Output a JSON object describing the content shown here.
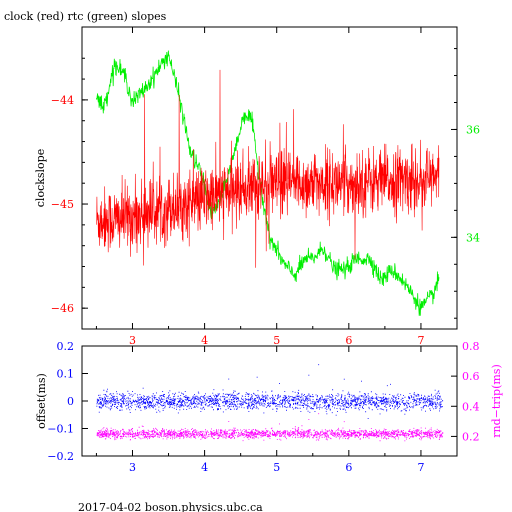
{
  "title": "clock (red) rtc (green) slopes",
  "footer": "2017-04-02  boson.physics.ubc.ca",
  "colors": {
    "clock": "#ff0000",
    "rtc": "#00ee00",
    "offset": "#0000ff",
    "rnd_trip": "#ff00ff",
    "axes": "#000000"
  },
  "chart_data": [
    {
      "type": "line",
      "title": "clock (red) rtc (green) slopes",
      "ylabel": "clockslope",
      "xlim": [
        2.3,
        7.5
      ],
      "ylim": [
        -46.2,
        -43.3
      ],
      "y2lim": [
        32.3,
        37.9
      ],
      "x_ticks": [
        3,
        4,
        5,
        6,
        7
      ],
      "y_ticks": [
        -44,
        -45,
        -46
      ],
      "y2_ticks": [
        34,
        36
      ],
      "series": [
        {
          "name": "clock",
          "axis": "left",
          "color": "#ff0000",
          "x": [
            2.5,
            2.75,
            3.0,
            3.25,
            3.5,
            3.75,
            4.0,
            4.25,
            4.5,
            4.75,
            5.0,
            5.25,
            5.5,
            5.75,
            6.0,
            6.25,
            6.5,
            6.75,
            7.0,
            7.25
          ],
          "y": [
            -45.15,
            -45.15,
            -45.12,
            -45.07,
            -45.03,
            -45.0,
            -44.95,
            -44.9,
            -44.85,
            -44.82,
            -44.82,
            -44.8,
            -44.8,
            -44.8,
            -44.8,
            -44.78,
            -44.78,
            -44.77,
            -44.76,
            -44.75
          ],
          "noise": 0.35
        },
        {
          "name": "rtc",
          "axis": "right",
          "color": "#00ee00",
          "x": [
            2.5,
            2.6,
            2.75,
            2.9,
            3.0,
            3.2,
            3.35,
            3.5,
            3.65,
            3.8,
            3.95,
            4.1,
            4.25,
            4.4,
            4.55,
            4.65,
            4.75,
            4.9,
            5.1,
            5.25,
            5.4,
            5.5,
            5.65,
            5.8,
            5.95,
            6.1,
            6.3,
            6.45,
            6.6,
            6.75,
            6.9,
            7.0,
            7.15,
            7.25
          ],
          "y": [
            36.6,
            36.4,
            37.2,
            37.0,
            36.5,
            36.8,
            37.1,
            37.4,
            36.6,
            35.6,
            35.2,
            34.4,
            34.8,
            35.5,
            36.3,
            36.2,
            35.2,
            34.0,
            33.5,
            33.3,
            33.6,
            33.6,
            33.8,
            33.4,
            33.4,
            33.6,
            33.6,
            33.2,
            33.4,
            33.2,
            32.9,
            32.7,
            32.9,
            33.2
          ],
          "noise": 0.08
        }
      ]
    },
    {
      "type": "scatter",
      "ylabel": "offset(ms)",
      "y2label": "rnd−trip(ms)",
      "xlim": [
        2.3,
        7.5
      ],
      "ylim": [
        -0.2,
        0.2
      ],
      "y2lim": [
        0.07,
        0.8
      ],
      "x_ticks": [
        3,
        4,
        5,
        6,
        7
      ],
      "y_ticks": [
        0.2,
        0.1,
        0,
        -0.1,
        -0.2
      ],
      "y2_ticks": [
        0.8,
        0.6,
        0.4,
        0.2
      ],
      "series": [
        {
          "name": "offset",
          "axis": "left",
          "color": "#0000ff",
          "x_range": [
            2.5,
            7.3
          ],
          "center": 0.0,
          "spread": 0.025
        },
        {
          "name": "rnd-trip",
          "axis": "right",
          "color": "#ff00ff",
          "x_range": [
            2.5,
            7.3
          ],
          "center": 0.22,
          "spread": 0.025
        }
      ]
    }
  ]
}
